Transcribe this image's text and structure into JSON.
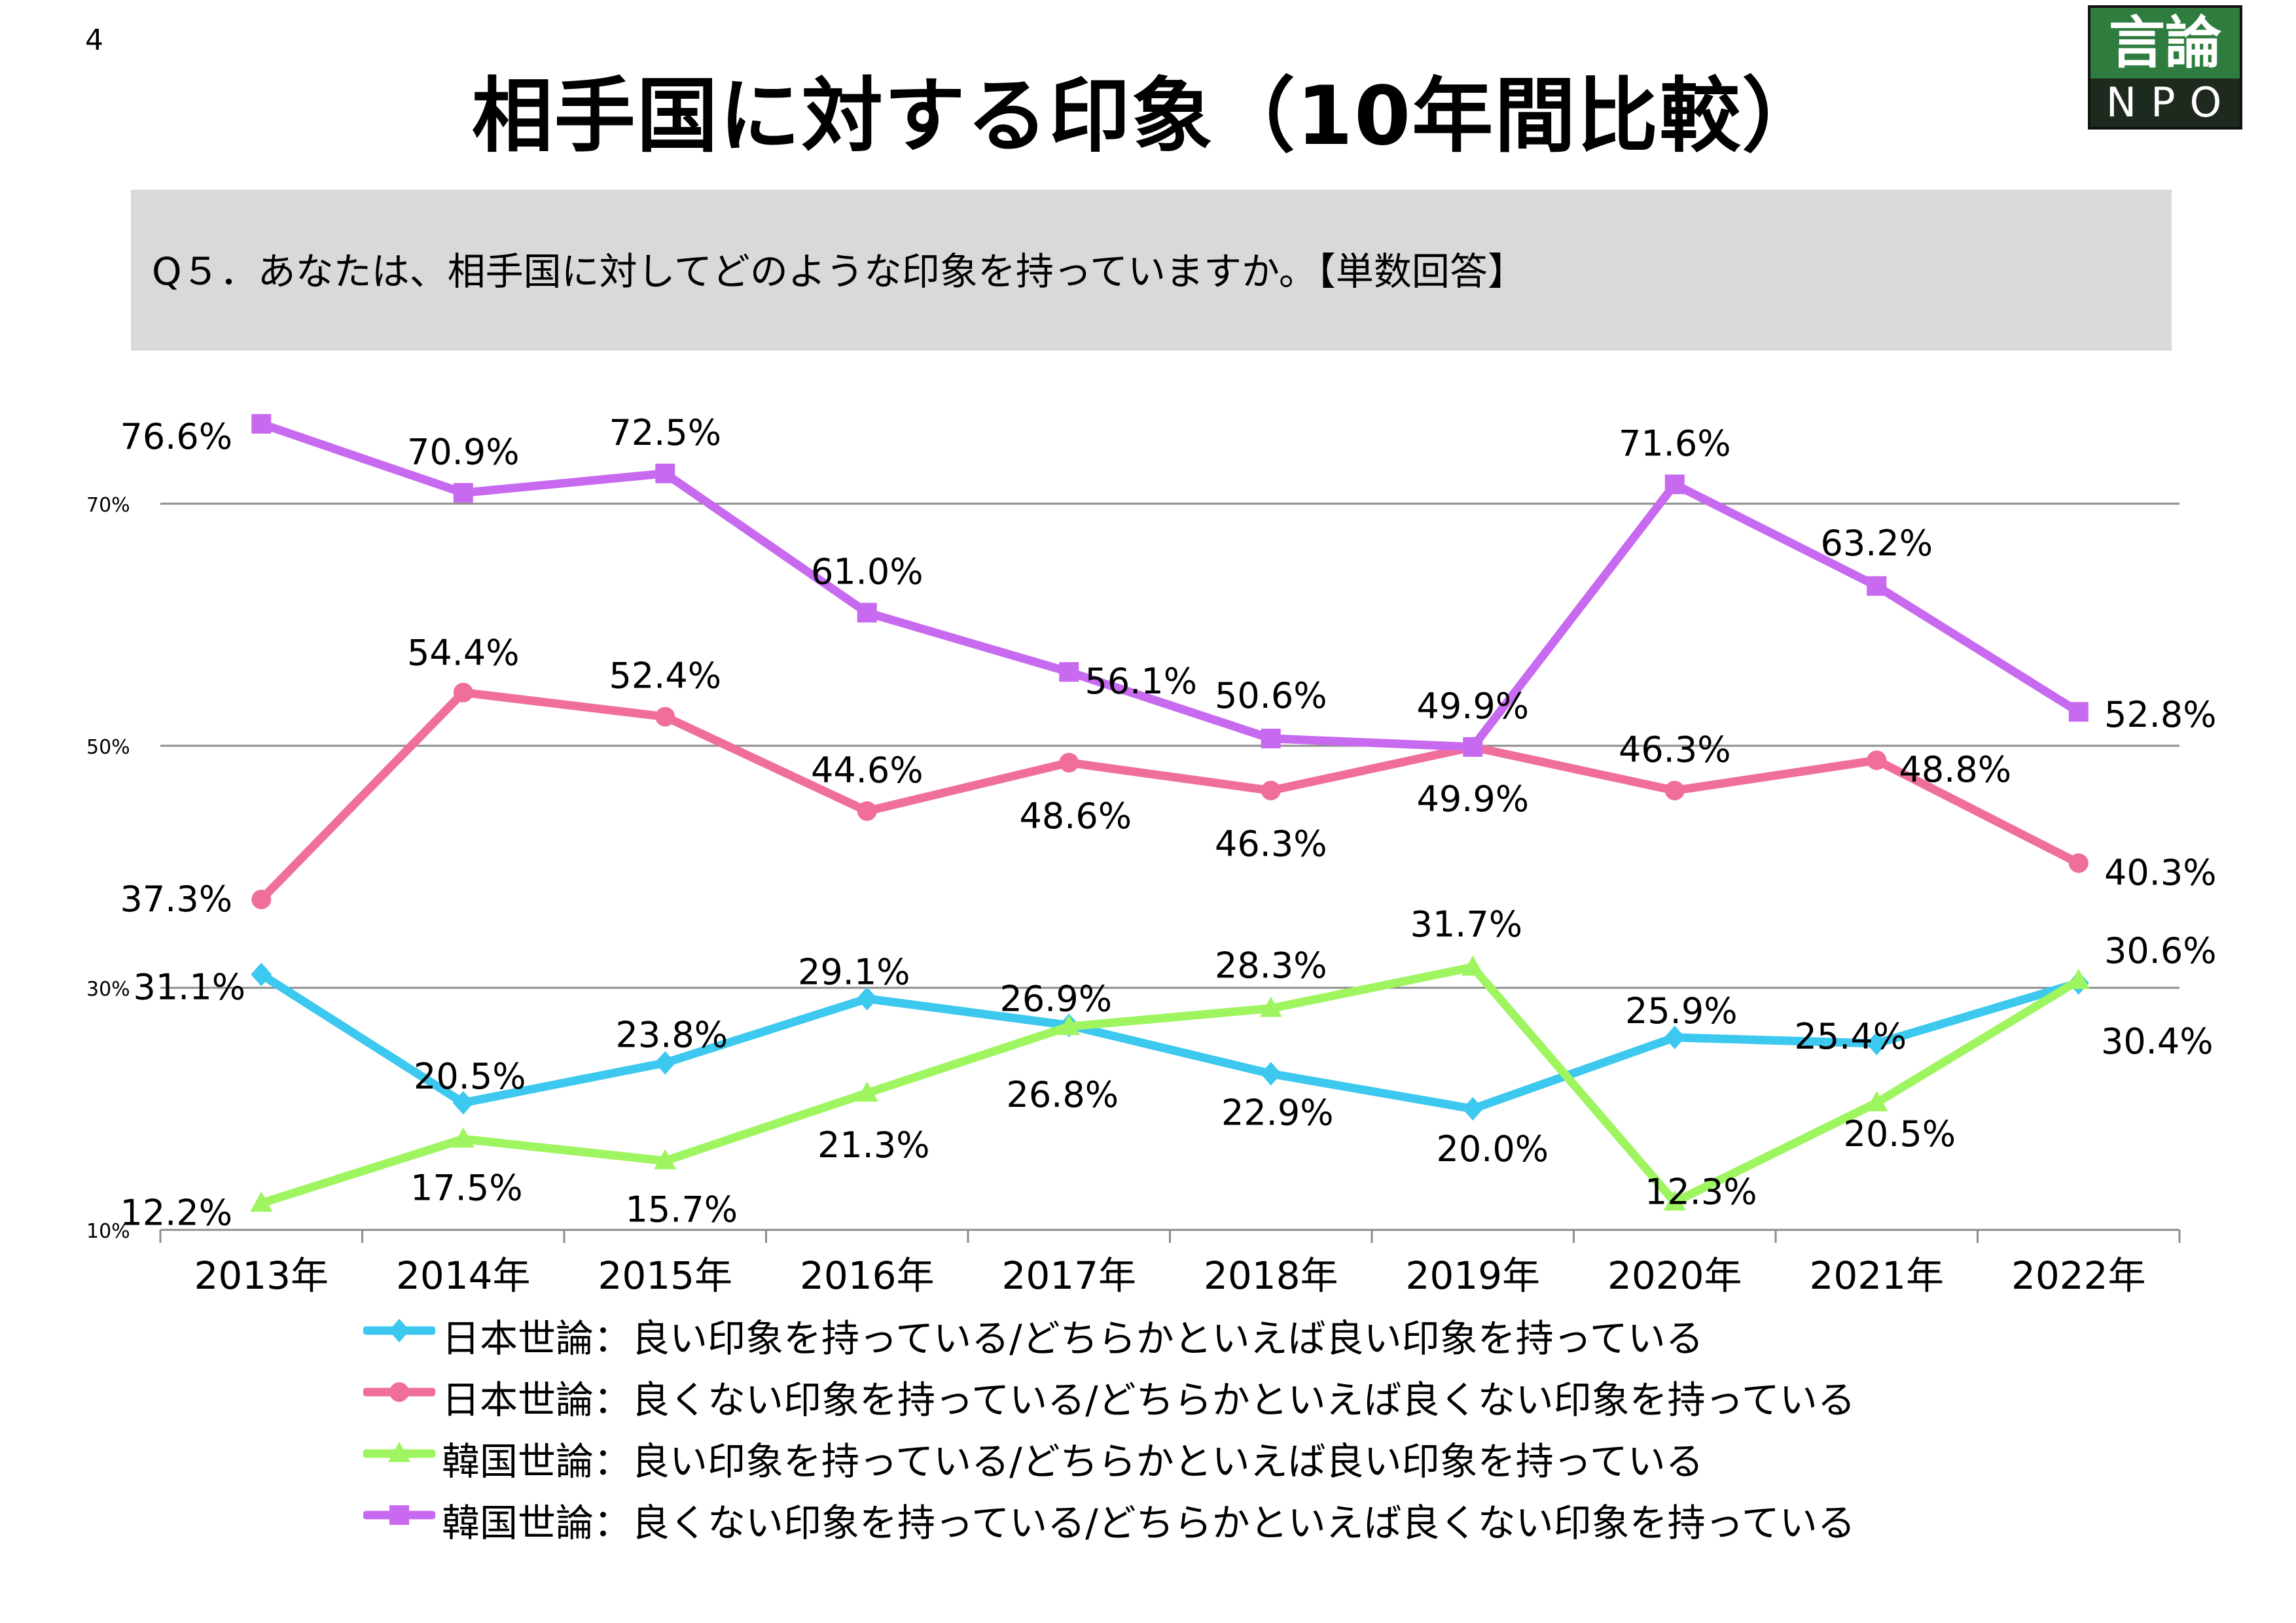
{
  "page": {
    "number": "4",
    "title": "相手国に対する印象（10年間比較）"
  },
  "logo": {
    "top_text": "言論",
    "bottom_text": "NPO",
    "color": "#2f7d3e"
  },
  "question": {
    "text": "Q５．あなたは、相手国に対してどのような印象を持っていますか。【単数回答】"
  },
  "chart_data": {
    "type": "line",
    "categories": [
      "2013年",
      "2014年",
      "2015年",
      "2016年",
      "2017年",
      "2018年",
      "2019年",
      "2020年",
      "2021年",
      "2022年"
    ],
    "yticks": [
      "10%",
      "30%",
      "50%",
      "70%"
    ],
    "ylim": [
      10,
      80
    ],
    "grid": true,
    "legend_position": "bottom",
    "series": [
      {
        "name": "日本世論：良い印象を持っている/どちらかといえば良い印象を持っている",
        "color": "#3cc8ef",
        "marker": "diamond",
        "values": [
          31.1,
          20.5,
          23.8,
          29.1,
          26.9,
          22.9,
          20.0,
          25.9,
          25.4,
          30.4
        ],
        "labels": [
          "31.1%",
          "20.5%",
          "23.8%",
          "29.1%",
          "26.9%",
          "22.9%",
          "20.0%",
          "25.9%",
          "25.4%",
          "30.4%"
        ]
      },
      {
        "name": "日本世論：良くない印象を持っている/どちらかといえば良くない印象を持っている",
        "color": "#f06e9b",
        "marker": "circle",
        "values": [
          37.3,
          54.4,
          52.4,
          44.6,
          48.6,
          46.3,
          49.9,
          46.3,
          48.8,
          40.3
        ],
        "labels": [
          "37.3%",
          "54.4%",
          "52.4%",
          "44.6%",
          "48.6%",
          "46.3%",
          "49.9%",
          "46.3%",
          "48.8%",
          "40.3%"
        ]
      },
      {
        "name": "韓国世論：良い印象を持っている/どちらかといえば良い印象を持っている",
        "color": "#9ef55f",
        "marker": "triangle",
        "values": [
          12.2,
          17.5,
          15.7,
          21.3,
          26.8,
          28.3,
          31.7,
          12.3,
          20.5,
          30.6
        ],
        "labels": [
          "12.2%",
          "17.5%",
          "15.7%",
          "21.3%",
          "26.8%",
          "28.3%",
          "31.7%",
          "12.3%",
          "20.5%",
          "30.6%"
        ]
      },
      {
        "name": "韓国世論：良くない印象を持っている/どちらかといえば良くない印象を持っている",
        "color": "#c86af0",
        "marker": "square",
        "values": [
          76.6,
          70.9,
          72.5,
          61.0,
          56.1,
          50.6,
          49.9,
          71.6,
          63.2,
          52.8
        ],
        "labels": [
          "76.6%",
          "70.9%",
          "72.5%",
          "61.0%",
          "56.1%",
          "50.6%",
          "49.9%",
          "71.6%",
          "63.2%",
          "52.8%"
        ]
      }
    ]
  }
}
